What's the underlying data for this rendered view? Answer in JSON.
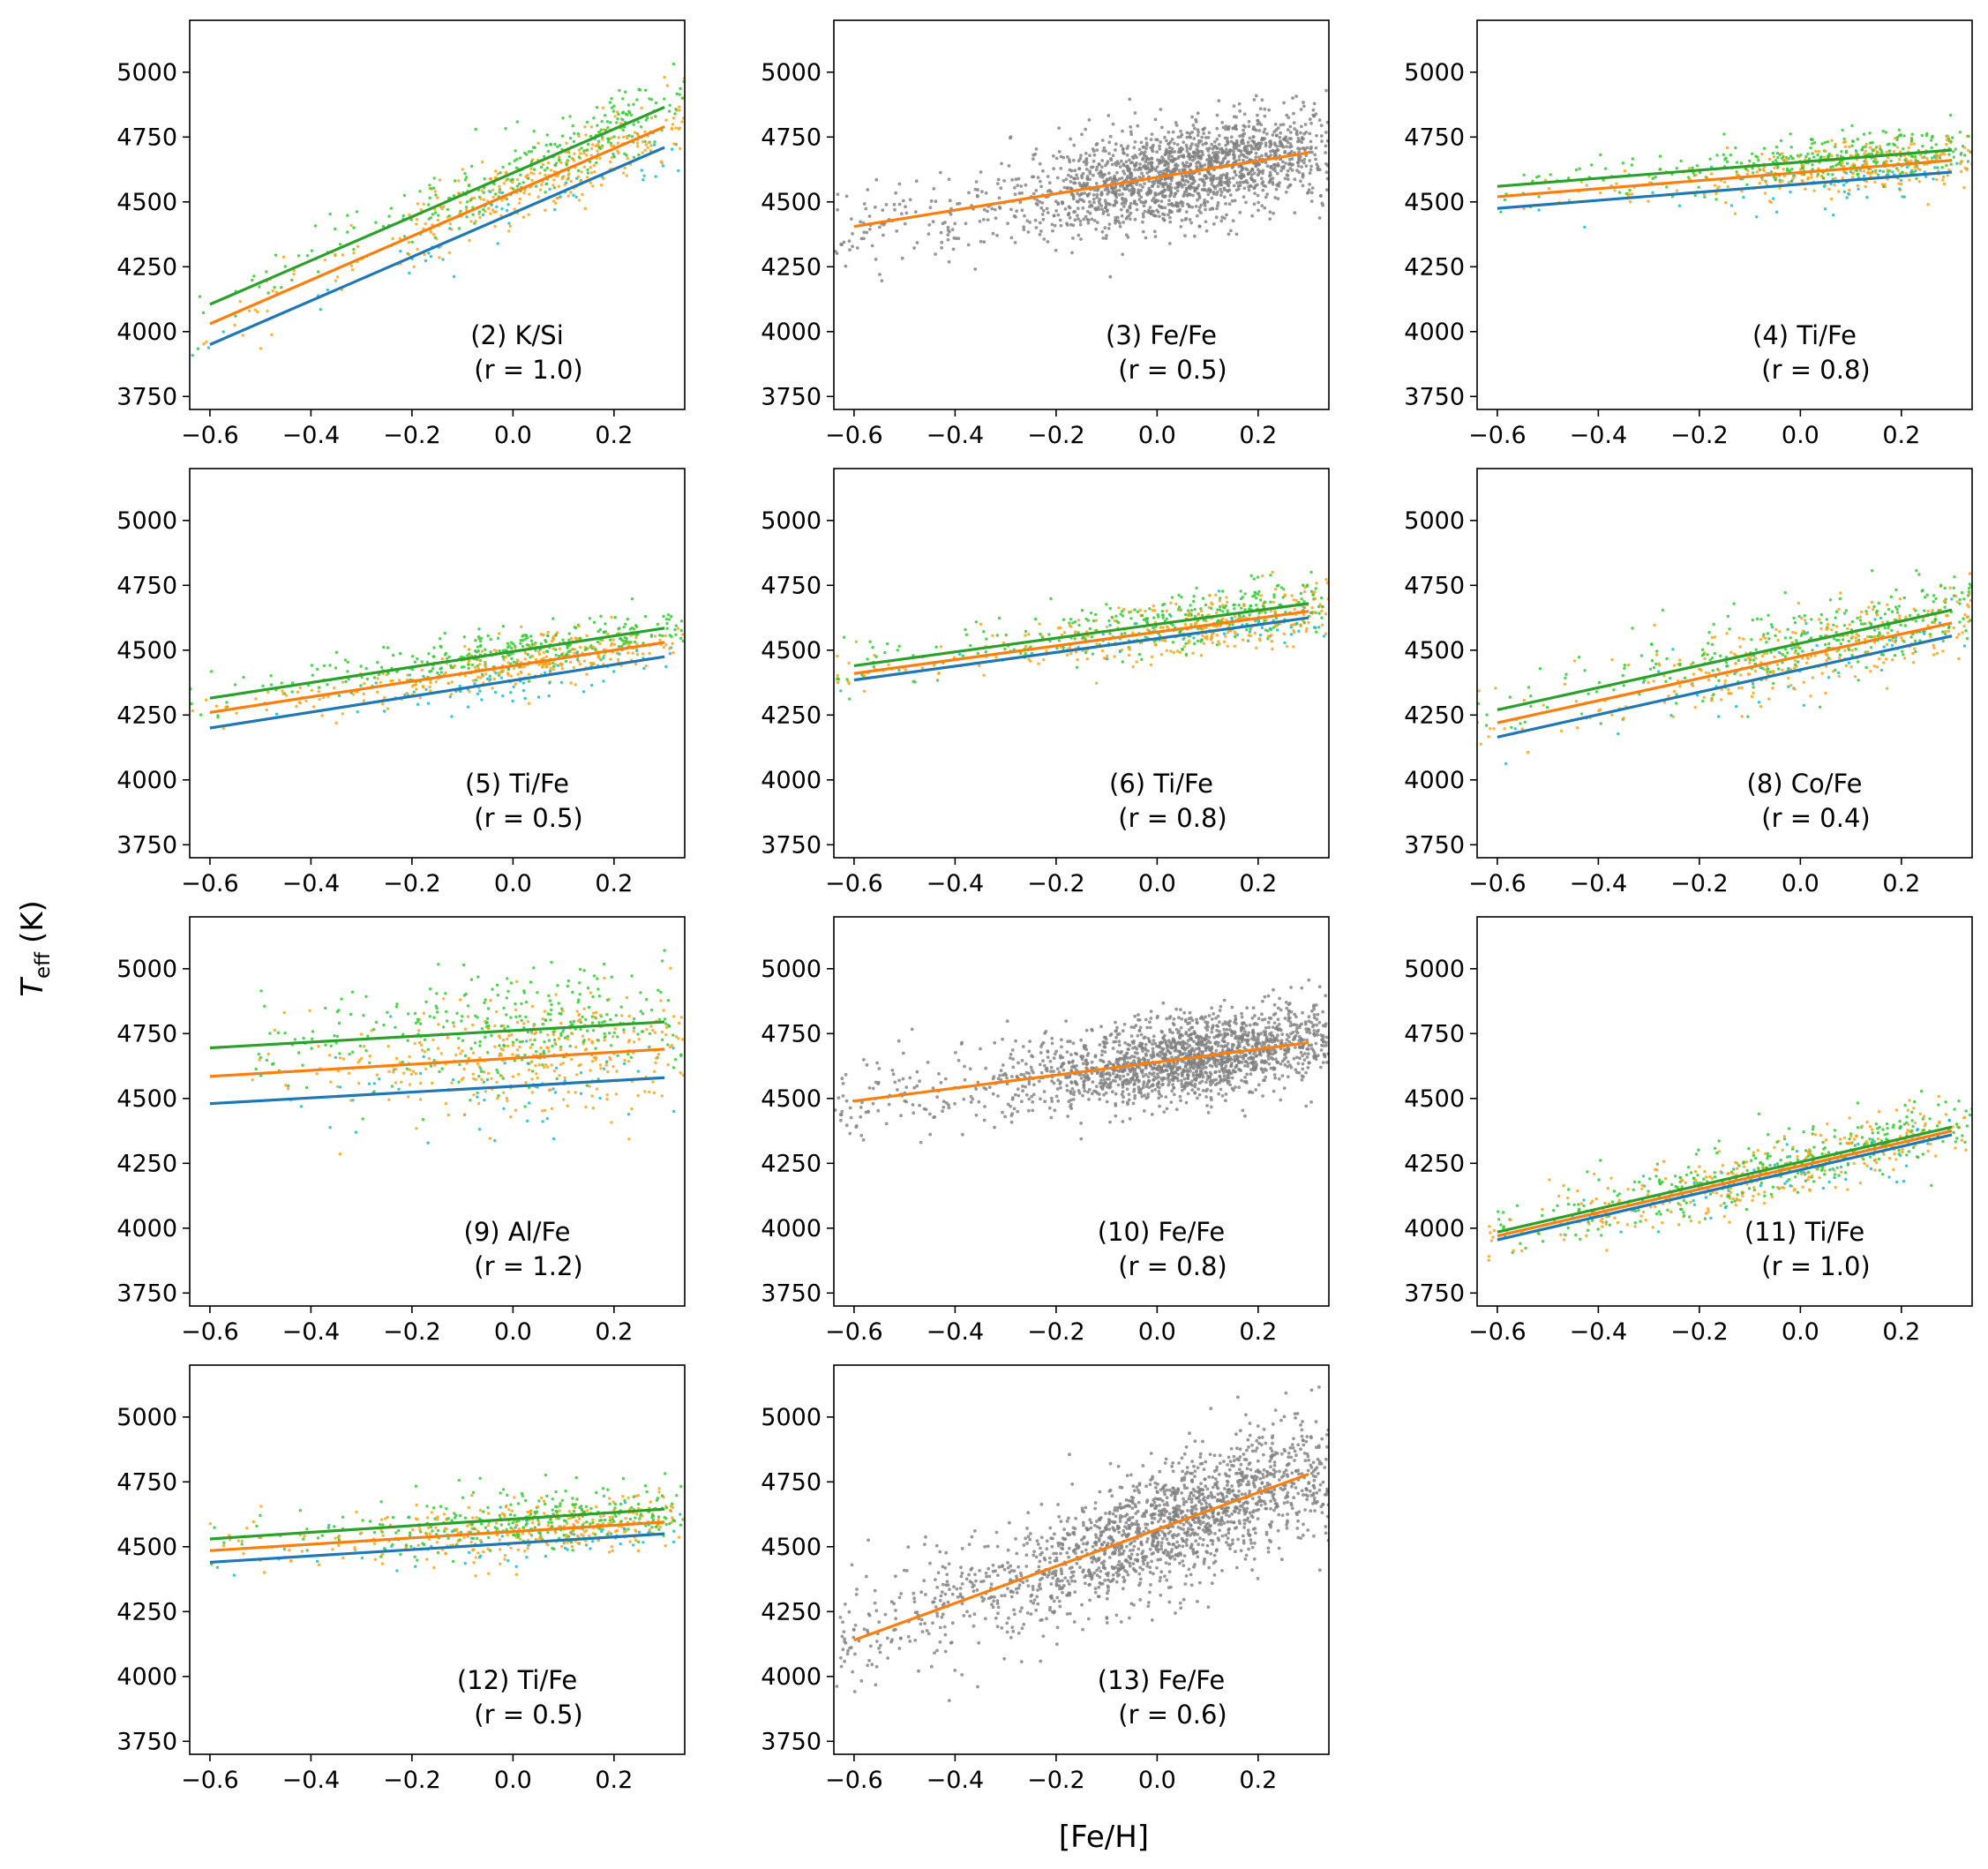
{
  "figure": {
    "xlabel": "[Fe/H]",
    "ylabel_main": "T",
    "ylabel_sub": "eff",
    "ylabel_unit": "(K)"
  },
  "colors": {
    "blue": "#1f77b4",
    "orange": "#ff7f0e",
    "green": "#2ca02c",
    "grey_points": "#808080",
    "cyan_points": "#17becf",
    "orange_points": "#ffa31a",
    "green_points": "#32cd32"
  },
  "chart_data": [
    {
      "type": "scatter",
      "label": "(2) K/Si",
      "r": "(r = 1.0)",
      "grey": false,
      "xlim": [
        -0.64,
        0.34
      ],
      "ylim": [
        3700,
        5200
      ],
      "xticks": [
        "−0.6",
        "−0.4",
        "−0.2",
        "0.0",
        "0.2"
      ],
      "yticks": [
        "3750",
        "4000",
        "4250",
        "4500",
        "4750",
        "5000"
      ],
      "series": [
        {
          "color": "blue",
          "x": [
            -0.6,
            0.3
          ],
          "y": [
            3950,
            4710
          ]
        },
        {
          "color": "orange",
          "x": [
            -0.6,
            0.3
          ],
          "y": [
            4030,
            4790
          ]
        },
        {
          "color": "green",
          "x": [
            -0.6,
            0.3
          ],
          "y": [
            4105,
            4865
          ]
        }
      ],
      "scatter": {
        "xmin": -0.64,
        "xmax": 0.34,
        "center": 0.12,
        "spread": 0.2,
        "residual": 70
      }
    },
    {
      "type": "scatter",
      "label": "(3) Fe/Fe",
      "r": "(r = 0.5)",
      "grey": true,
      "xlim": [
        -0.64,
        0.34
      ],
      "ylim": [
        3700,
        5200
      ],
      "xticks": [
        "−0.6",
        "−0.4",
        "−0.2",
        "0.0",
        "0.2"
      ],
      "yticks": [
        "3750",
        "4000",
        "4250",
        "4500",
        "4750",
        "5000"
      ],
      "series": [
        {
          "color": "orange",
          "x": [
            -0.6,
            0.3
          ],
          "y": [
            4405,
            4690
          ]
        }
      ],
      "scatter": {
        "xmin": -0.64,
        "xmax": 0.34,
        "center": 0.07,
        "spread": 0.16,
        "residual": 95
      }
    },
    {
      "type": "scatter",
      "label": "(4) Ti/Fe",
      "r": "(r = 0.8)",
      "grey": false,
      "xlim": [
        -0.64,
        0.34
      ],
      "ylim": [
        3700,
        5200
      ],
      "xticks": [
        "−0.6",
        "−0.4",
        "−0.2",
        "0.0",
        "0.2"
      ],
      "yticks": [
        "3750",
        "4000",
        "4250",
        "4500",
        "4750",
        "5000"
      ],
      "series": [
        {
          "color": "blue",
          "x": [
            -0.6,
            0.3
          ],
          "y": [
            4475,
            4615
          ]
        },
        {
          "color": "orange",
          "x": [
            -0.6,
            0.3
          ],
          "y": [
            4520,
            4660
          ]
        },
        {
          "color": "green",
          "x": [
            -0.6,
            0.3
          ],
          "y": [
            4560,
            4700
          ]
        }
      ],
      "scatter": {
        "xmin": -0.6,
        "xmax": 0.34,
        "center": 0.12,
        "spread": 0.17,
        "residual": 50
      }
    },
    {
      "type": "scatter",
      "label": "(5) Ti/Fe",
      "r": "(r = 0.5)",
      "grey": false,
      "xlim": [
        -0.64,
        0.34
      ],
      "ylim": [
        3700,
        5200
      ],
      "xticks": [
        "−0.6",
        "−0.4",
        "−0.2",
        "0.0",
        "0.2"
      ],
      "yticks": [
        "3750",
        "4000",
        "4250",
        "4500",
        "4750",
        "5000"
      ],
      "series": [
        {
          "color": "blue",
          "x": [
            -0.6,
            0.3
          ],
          "y": [
            4200,
            4475
          ]
        },
        {
          "color": "orange",
          "x": [
            -0.6,
            0.3
          ],
          "y": [
            4260,
            4530
          ]
        },
        {
          "color": "green",
          "x": [
            -0.6,
            0.3
          ],
          "y": [
            4315,
            4585
          ]
        }
      ],
      "scatter": {
        "xmin": -0.64,
        "xmax": 0.34,
        "center": 0.05,
        "spread": 0.2,
        "residual": 45
      }
    },
    {
      "type": "scatter",
      "label": "(6) Ti/Fe",
      "r": "(r = 0.8)",
      "grey": false,
      "xlim": [
        -0.64,
        0.34
      ],
      "ylim": [
        3700,
        5200
      ],
      "xticks": [
        "−0.6",
        "−0.4",
        "−0.2",
        "0.0",
        "0.2"
      ],
      "yticks": [
        "3750",
        "4000",
        "4250",
        "4500",
        "4750",
        "5000"
      ],
      "series": [
        {
          "color": "blue",
          "x": [
            -0.6,
            0.3
          ],
          "y": [
            4385,
            4625
          ]
        },
        {
          "color": "orange",
          "x": [
            -0.6,
            0.3
          ],
          "y": [
            4410,
            4650
          ]
        },
        {
          "color": "green",
          "x": [
            -0.6,
            0.3
          ],
          "y": [
            4440,
            4680
          ]
        }
      ],
      "scatter": {
        "xmin": -0.64,
        "xmax": 0.34,
        "center": 0.12,
        "spread": 0.17,
        "residual": 55
      }
    },
    {
      "type": "scatter",
      "label": "(8) Co/Fe",
      "r": "(r = 0.4)",
      "grey": false,
      "xlim": [
        -0.64,
        0.34
      ],
      "ylim": [
        3700,
        5200
      ],
      "xticks": [
        "−0.6",
        "−0.4",
        "−0.2",
        "0.0",
        "0.2"
      ],
      "yticks": [
        "3750",
        "4000",
        "4250",
        "4500",
        "4750",
        "5000"
      ],
      "series": [
        {
          "color": "blue",
          "x": [
            -0.6,
            0.3
          ],
          "y": [
            4165,
            4555
          ]
        },
        {
          "color": "orange",
          "x": [
            -0.6,
            0.3
          ],
          "y": [
            4220,
            4605
          ]
        },
        {
          "color": "green",
          "x": [
            -0.6,
            0.3
          ],
          "y": [
            4270,
            4655
          ]
        }
      ],
      "scatter": {
        "xmin": -0.64,
        "xmax": 0.34,
        "center": 0.08,
        "spread": 0.22,
        "residual": 75
      }
    },
    {
      "type": "scatter",
      "label": "(9) Al/Fe",
      "r": "(r = 1.2)",
      "grey": false,
      "xlim": [
        -0.64,
        0.34
      ],
      "ylim": [
        3700,
        5200
      ],
      "xticks": [
        "−0.6",
        "−0.4",
        "−0.2",
        "0.0",
        "0.2"
      ],
      "yticks": [
        "3750",
        "4000",
        "4250",
        "4500",
        "4750",
        "5000"
      ],
      "series": [
        {
          "color": "blue",
          "x": [
            -0.6,
            0.3
          ],
          "y": [
            4480,
            4580
          ]
        },
        {
          "color": "orange",
          "x": [
            -0.6,
            0.3
          ],
          "y": [
            4585,
            4690
          ]
        },
        {
          "color": "green",
          "x": [
            -0.6,
            0.3
          ],
          "y": [
            4695,
            4795
          ]
        }
      ],
      "scatter": {
        "xmin": -0.52,
        "xmax": 0.34,
        "center": 0.05,
        "spread": 0.2,
        "residual": 110
      }
    },
    {
      "type": "scatter",
      "label": "(10) Fe/Fe",
      "r": "(r = 0.8)",
      "grey": true,
      "xlim": [
        -0.64,
        0.34
      ],
      "ylim": [
        3700,
        5200
      ],
      "xticks": [
        "−0.6",
        "−0.4",
        "−0.2",
        "0.0",
        "0.2"
      ],
      "yticks": [
        "3750",
        "4000",
        "4250",
        "4500",
        "4750",
        "5000"
      ],
      "series": [
        {
          "color": "orange",
          "x": [
            -0.6,
            0.3
          ],
          "y": [
            4490,
            4715
          ]
        }
      ],
      "scatter": {
        "xmin": -0.64,
        "xmax": 0.34,
        "center": 0.08,
        "spread": 0.16,
        "residual": 80
      }
    },
    {
      "type": "scatter",
      "label": "(11) Ti/Fe",
      "r": "(r = 1.0)",
      "grey": false,
      "xlim": [
        -0.64,
        0.34
      ],
      "ylim": [
        3700,
        5200
      ],
      "xticks": [
        "−0.6",
        "−0.4",
        "−0.2",
        "0.0",
        "0.2"
      ],
      "yticks": [
        "3750",
        "4000",
        "4250",
        "4500",
        "4750",
        "5000"
      ],
      "series": [
        {
          "color": "blue",
          "x": [
            -0.6,
            0.3
          ],
          "y": [
            3955,
            4360
          ]
        },
        {
          "color": "orange",
          "x": [
            -0.6,
            0.3
          ],
          "y": [
            3970,
            4375
          ]
        },
        {
          "color": "green",
          "x": [
            -0.6,
            0.3
          ],
          "y": [
            3985,
            4390
          ]
        }
      ],
      "scatter": {
        "xmin": -0.62,
        "xmax": 0.34,
        "center": -0.05,
        "spread": 0.22,
        "residual": 60
      }
    },
    {
      "type": "scatter",
      "label": "(12) Ti/Fe",
      "r": "(r = 0.5)",
      "grey": false,
      "xlim": [
        -0.64,
        0.34
      ],
      "ylim": [
        3700,
        5200
      ],
      "xticks": [
        "−0.6",
        "−0.4",
        "−0.2",
        "0.0",
        "0.2"
      ],
      "yticks": [
        "3750",
        "4000",
        "4250",
        "4500",
        "4750",
        "5000"
      ],
      "series": [
        {
          "color": "blue",
          "x": [
            -0.6,
            0.3
          ],
          "y": [
            4440,
            4550
          ]
        },
        {
          "color": "orange",
          "x": [
            -0.6,
            0.3
          ],
          "y": [
            4485,
            4595
          ]
        },
        {
          "color": "green",
          "x": [
            -0.6,
            0.3
          ],
          "y": [
            4530,
            4645
          ]
        }
      ],
      "scatter": {
        "xmin": -0.64,
        "xmax": 0.34,
        "center": 0.1,
        "spread": 0.18,
        "residual": 55
      }
    },
    {
      "type": "scatter",
      "label": "(13) Fe/Fe",
      "r": "(r = 0.6)",
      "grey": true,
      "xlim": [
        -0.64,
        0.34
      ],
      "ylim": [
        3700,
        5200
      ],
      "xticks": [
        "−0.6",
        "−0.4",
        "−0.2",
        "0.0",
        "0.2"
      ],
      "yticks": [
        "3750",
        "4000",
        "4250",
        "4500",
        "4750",
        "5000"
      ],
      "series": [
        {
          "color": "orange",
          "x": [
            -0.6,
            0.3
          ],
          "y": [
            4140,
            4780
          ]
        }
      ],
      "scatter": {
        "xmin": -0.64,
        "xmax": 0.34,
        "center": 0.05,
        "spread": 0.2,
        "residual": 120
      }
    }
  ]
}
